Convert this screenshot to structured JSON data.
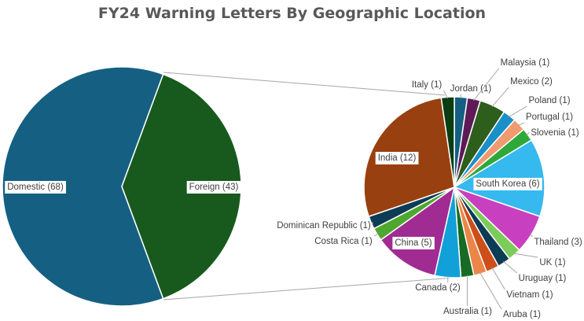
{
  "chart_data": {
    "type": "pie-of-pie",
    "title": "FY24 Warning Letters By Geographic Location",
    "primary": {
      "slices": [
        {
          "label": "Domestic",
          "value": 68,
          "color": "#156082"
        },
        {
          "label": "Foreign",
          "value": 43,
          "color": "#185A1E"
        }
      ]
    },
    "secondary": {
      "parent": "Foreign",
      "slices": [
        {
          "label": "Jordan",
          "value": 1,
          "color": "#156082"
        },
        {
          "label": "Malaysia",
          "value": 1,
          "color": "#5E1A57"
        },
        {
          "label": "Mexico",
          "value": 2,
          "color": "#2E5E1C"
        },
        {
          "label": "Poland",
          "value": 1,
          "color": "#1B8FC8"
        },
        {
          "label": "Portugal",
          "value": 1,
          "color": "#F09A70"
        },
        {
          "label": "Slovenia",
          "value": 1,
          "color": "#2FA83A"
        },
        {
          "label": "South Korea",
          "value": 6,
          "color": "#35B9EE"
        },
        {
          "label": "Thailand",
          "value": 3,
          "color": "#C840C0"
        },
        {
          "label": "UK",
          "value": 1,
          "color": "#7CCC5A"
        },
        {
          "label": "Uruguay",
          "value": 1,
          "color": "#0D3C55"
        },
        {
          "label": "Vietnam",
          "value": 1,
          "color": "#CD4E18"
        },
        {
          "label": "Aruba",
          "value": 1,
          "color": "#EC8548"
        },
        {
          "label": "Australia",
          "value": 1,
          "color": "#176B24"
        },
        {
          "label": "Canada",
          "value": 2,
          "color": "#12A0D8"
        },
        {
          "label": "China",
          "value": 5,
          "color": "#A02B93"
        },
        {
          "label": "Costa Rica",
          "value": 1,
          "color": "#4EA72E"
        },
        {
          "label": "Dominican Republic",
          "value": 1,
          "color": "#0D3C55"
        },
        {
          "label": "India",
          "value": 12,
          "color": "#994010"
        },
        {
          "label": "Italy",
          "value": 1,
          "color": "#0B3D12"
        }
      ]
    },
    "data_labels": "category (value)",
    "legend": "none"
  }
}
